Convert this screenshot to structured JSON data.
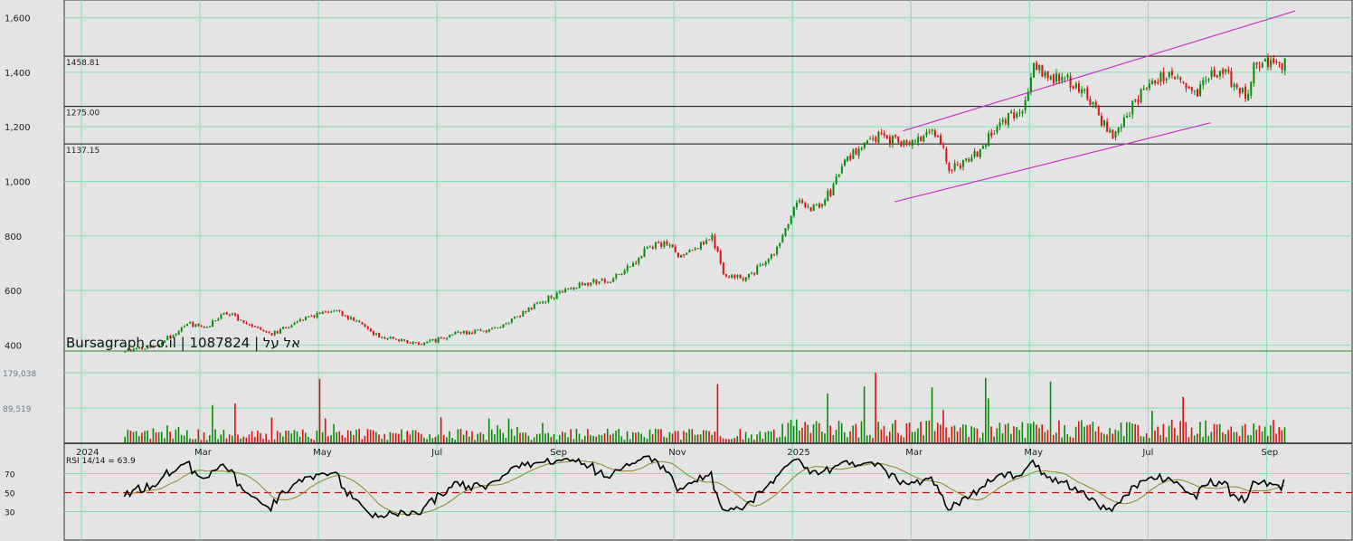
{
  "watermark": "Bursagraph.co.il | 1087824 | אל על",
  "colors": {
    "up": "#0a8a0a",
    "down": "#dd1111",
    "grid": "#7fe0b0",
    "channel": "#cc33cc",
    "rsi": "#000000",
    "rsi_ma": "#8a8a20",
    "midline": "#cc1111"
  },
  "chart_data": [
    {
      "type": "candlestick",
      "title": "",
      "y_ticks": [
        "1,600",
        "1,400",
        "1,200",
        "1,000",
        "800",
        "600",
        "400"
      ],
      "y_tick_values": [
        1600,
        1400,
        1200,
        1000,
        800,
        600,
        400
      ],
      "ylim": [
        378,
        1665
      ],
      "x_labels": [
        "2024",
        "Mar",
        "May",
        "Jul",
        "Sep",
        "Nov",
        "2025",
        "Mar",
        "May",
        "Jul",
        "Sep"
      ],
      "x_label_index": [
        0,
        42,
        84,
        126,
        168,
        210,
        252,
        294,
        336,
        378,
        420
      ],
      "n_bars": 432,
      "horizontal_levels": [
        {
          "label": "1458.81",
          "value": 1458.81
        },
        {
          "label": "1275.00",
          "value": 1275.0
        },
        {
          "label": "1137.15",
          "value": 1137.15
        }
      ],
      "channel_lines": [
        {
          "from": [
            296,
            1185
          ],
          "to": [
            435,
            1625
          ]
        },
        {
          "from": [
            293,
            925
          ],
          "to": [
            405,
            1215
          ]
        }
      ],
      "price_anchors": [
        [
          20,
          380
        ],
        [
          30,
          395
        ],
        [
          38,
          445
        ],
        [
          42,
          480
        ],
        [
          48,
          460
        ],
        [
          56,
          520
        ],
        [
          64,
          470
        ],
        [
          72,
          440
        ],
        [
          84,
          500
        ],
        [
          94,
          530
        ],
        [
          104,
          470
        ],
        [
          110,
          430
        ],
        [
          126,
          405
        ],
        [
          136,
          440
        ],
        [
          150,
          455
        ],
        [
          160,
          510
        ],
        [
          168,
          560
        ],
        [
          176,
          600
        ],
        [
          184,
          630
        ],
        [
          192,
          640
        ],
        [
          200,
          700
        ],
        [
          206,
          760
        ],
        [
          212,
          780
        ],
        [
          216,
          730
        ],
        [
          222,
          760
        ],
        [
          228,
          800
        ],
        [
          232,
          660
        ],
        [
          240,
          640
        ],
        [
          250,
          740
        ],
        [
          258,
          920
        ],
        [
          264,
          900
        ],
        [
          270,
          960
        ],
        [
          276,
          1080
        ],
        [
          284,
          1170
        ],
        [
          292,
          1150
        ],
        [
          300,
          1140
        ],
        [
          304,
          1190
        ],
        [
          308,
          1170
        ],
        [
          312,
          1050
        ],
        [
          316,
          1060
        ],
        [
          322,
          1100
        ],
        [
          330,
          1220
        ],
        [
          338,
          1270
        ],
        [
          342,
          1430
        ],
        [
          346,
          1380
        ],
        [
          352,
          1380
        ],
        [
          356,
          1360
        ],
        [
          362,
          1300
        ],
        [
          366,
          1220
        ],
        [
          370,
          1170
        ],
        [
          374,
          1230
        ],
        [
          380,
          1320
        ],
        [
          386,
          1380
        ],
        [
          390,
          1400
        ],
        [
          396,
          1350
        ],
        [
          400,
          1320
        ],
        [
          404,
          1380
        ],
        [
          408,
          1410
        ],
        [
          414,
          1350
        ],
        [
          418,
          1300
        ],
        [
          420,
          1410
        ],
        [
          424,
          1430
        ]
      ],
      "volume_ticks": [
        "179,038",
        "89,519"
      ],
      "volume_tick_values": [
        179038,
        89519
      ],
      "volume_max": 230000,
      "rsi_label": "RSI 14/14 = 63.9",
      "rsi_ticks": [
        "70",
        "50",
        "30"
      ],
      "rsi_tick_values": [
        70,
        50,
        30
      ],
      "rsi_last": 63.9,
      "rsi_midline": 50
    }
  ]
}
